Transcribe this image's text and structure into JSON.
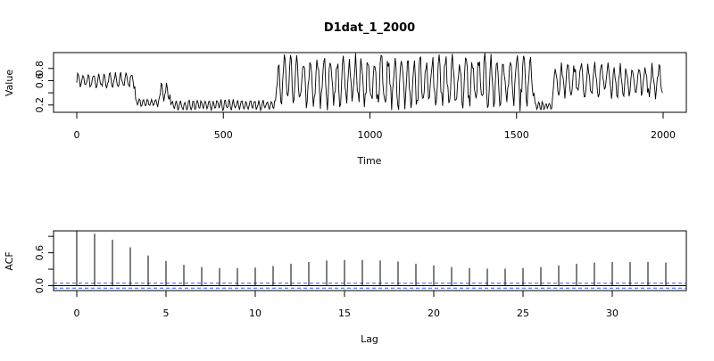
{
  "chart_data": [
    {
      "type": "line",
      "title": "D1dat_1_2000",
      "xlabel": "Time",
      "ylabel": "Value",
      "xlim": [
        0,
        2000
      ],
      "ylim": [
        0.08,
        1.06
      ],
      "xticks": [
        0,
        500,
        1000,
        1500,
        2000
      ],
      "yticks": [
        0.2,
        0.4,
        0.6,
        0.8
      ],
      "ytick_labels": [
        "0.2",
        "",
        "0.6",
        "0.8"
      ],
      "grid": false,
      "legend": "none",
      "segments": [
        {
          "from": 0,
          "to": 200,
          "mean": 0.6,
          "amp": 0.1,
          "period": 18
        },
        {
          "from": 200,
          "to": 280,
          "mean": 0.24,
          "amp": 0.06,
          "period": 14
        },
        {
          "from": 280,
          "to": 320,
          "mean": 0.42,
          "amp": 0.14,
          "period": 16
        },
        {
          "from": 320,
          "to": 680,
          "mean": 0.2,
          "amp": 0.07,
          "period": 14
        },
        {
          "from": 680,
          "to": 1560,
          "mean": 0.58,
          "amp": 0.34,
          "period": 22
        },
        {
          "from": 1560,
          "to": 1620,
          "mean": 0.18,
          "amp": 0.06,
          "period": 12
        },
        {
          "from": 1620,
          "to": 2000,
          "mean": 0.6,
          "amp": 0.22,
          "period": 22
        }
      ],
      "series": [
        {
          "values": [
            0.55,
            0.52,
            0.62,
            0.6,
            0.58,
            0.66,
            0.63,
            0.57,
            0.6,
            0.64,
            0.22,
            0.2,
            0.24,
            0.21,
            0.4,
            0.55,
            0.3,
            0.18,
            0.22,
            0.2,
            0.19,
            0.23,
            0.17,
            0.21,
            0.2,
            0.24,
            0.18,
            0.22,
            0.2,
            0.25,
            0.19,
            0.21,
            0.23,
            0.26,
            0.6,
            0.95,
            0.3,
            0.85,
            0.4,
            0.92,
            0.35,
            0.88,
            0.28,
            0.97,
            0.45,
            0.8,
            0.3,
            0.93,
            0.38,
            0.86,
            0.5,
            0.96,
            0.4,
            0.78,
            0.25,
            0.9,
            0.48,
            0.84,
            0.33,
            0.98,
            0.36,
            0.82,
            0.42,
            0.94,
            0.3,
            0.88,
            0.35,
            0.99,
            0.4,
            0.85,
            0.3,
            0.92,
            0.38,
            0.8,
            0.2,
            0.14,
            0.18,
            0.15,
            0.2,
            0.16,
            0.45,
            0.8,
            0.4,
            0.75,
            0.55,
            0.85,
            0.5,
            0.7,
            0.48,
            0.82,
            0.55,
            0.65,
            0.5,
            0.78,
            0.6,
            0.72,
            0.58,
            0.68,
            0.8,
            0.75
          ]
        }
      ]
    },
    {
      "type": "bar",
      "xlabel": "Lag",
      "ylabel": "ACF",
      "xlim": [
        0,
        33
      ],
      "ylim": [
        -0.09,
        1.0
      ],
      "xticks": [
        0,
        5,
        10,
        15,
        20,
        25,
        30
      ],
      "yticks": [
        0.0,
        0.3,
        0.6,
        0.9
      ],
      "ytick_labels": [
        "0.0",
        "",
        "0.6",
        ""
      ],
      "confidence_band": 0.045,
      "confidence_color": "#3355ff",
      "grid": false,
      "legend": "none",
      "lags": [
        0,
        1,
        2,
        3,
        4,
        5,
        6,
        7,
        8,
        9,
        10,
        11,
        12,
        13,
        14,
        15,
        16,
        17,
        18,
        19,
        20,
        21,
        22,
        23,
        24,
        25,
        26,
        27,
        28,
        29,
        30,
        31,
        32,
        33
      ],
      "values": [
        1.0,
        0.95,
        0.84,
        0.7,
        0.55,
        0.45,
        0.38,
        0.34,
        0.32,
        0.32,
        0.33,
        0.36,
        0.4,
        0.43,
        0.46,
        0.47,
        0.47,
        0.46,
        0.44,
        0.4,
        0.37,
        0.34,
        0.32,
        0.31,
        0.31,
        0.32,
        0.34,
        0.37,
        0.4,
        0.42,
        0.43,
        0.43,
        0.43,
        0.42
      ]
    }
  ]
}
